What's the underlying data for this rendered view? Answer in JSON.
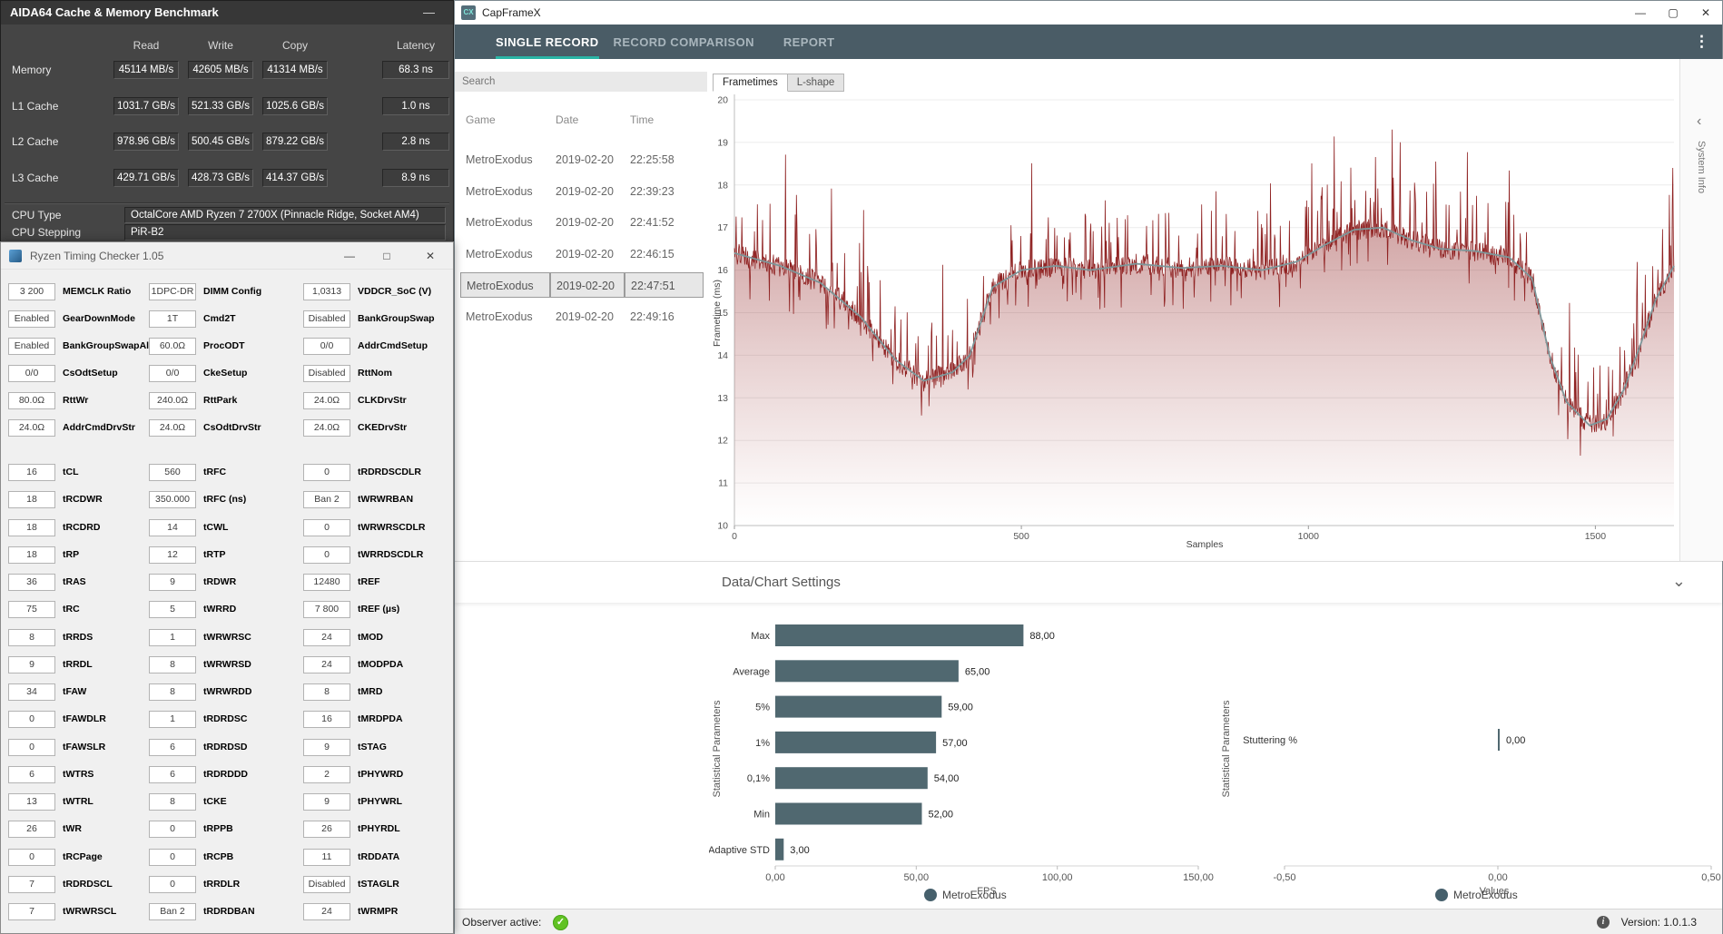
{
  "icons": {
    "minimize": "—",
    "maximize": "▢",
    "maximize_square": "□",
    "close": "✕",
    "kebab": "⋮",
    "chevron_down": "⌄",
    "chevron_left": "‹",
    "check": "✓",
    "info": "i"
  },
  "colors": {
    "navbar": "#4a5c66",
    "accent_teal": "#2ab5a5",
    "bar": "#506870",
    "legend_dot": "#46606c",
    "line_red": "#8f2222",
    "ma_line": "#7d9699",
    "check_green": "#61c224"
  },
  "aida64": {
    "title": "AIDA64 Cache & Memory Benchmark",
    "columns": [
      "Read",
      "Write",
      "Copy",
      "Latency"
    ],
    "rows": [
      {
        "label": "Memory",
        "values": [
          "45114 MB/s",
          "42605 MB/s",
          "41314 MB/s",
          "68.3 ns"
        ]
      },
      {
        "label": "L1 Cache",
        "values": [
          "1031.7 GB/s",
          "521.33 GB/s",
          "1025.6 GB/s",
          "1.0 ns"
        ]
      },
      {
        "label": "L2 Cache",
        "values": [
          "978.96 GB/s",
          "500.45 GB/s",
          "879.22 GB/s",
          "2.8 ns"
        ]
      },
      {
        "label": "L3 Cache",
        "values": [
          "429.71 GB/s",
          "428.73 GB/s",
          "414.37 GB/s",
          "8.9 ns"
        ]
      }
    ],
    "info_rows": [
      {
        "label": "CPU Type",
        "value": "OctalCore AMD Ryzen 7 2700X  (Pinnacle Ridge, Socket AM4)"
      },
      {
        "label": "CPU Stepping",
        "value": "PiR-B2"
      }
    ]
  },
  "rtc": {
    "title": "Ryzen Timing Checker 1.05",
    "columns": [
      {
        "top": [
          [
            "3 200",
            "MEMCLK Ratio"
          ],
          [
            "Enabled",
            "GearDownMode"
          ],
          [
            "Enabled",
            "BankGroupSwapAlt"
          ],
          [
            "0/0",
            "CsOdtSetup"
          ],
          [
            "80.0Ω",
            "RttWr"
          ],
          [
            "24.0Ω",
            "AddrCmdDrvStr"
          ]
        ],
        "bottom": [
          [
            "16",
            "tCL"
          ],
          [
            "18",
            "tRCDWR"
          ],
          [
            "18",
            "tRCDRD"
          ],
          [
            "18",
            "tRP"
          ],
          [
            "36",
            "tRAS"
          ],
          [
            "75",
            "tRC"
          ],
          [
            "8",
            "tRRDS"
          ],
          [
            "9",
            "tRRDL"
          ],
          [
            "34",
            "tFAW"
          ],
          [
            "0",
            "tFAWDLR"
          ],
          [
            "0",
            "tFAWSLR"
          ],
          [
            "6",
            "tWTRS"
          ],
          [
            "13",
            "tWTRL"
          ],
          [
            "26",
            "tWR"
          ],
          [
            "0",
            "tRCPage"
          ],
          [
            "7",
            "tRDRDSCL"
          ],
          [
            "7",
            "tWRWRSCL"
          ]
        ]
      },
      {
        "top": [
          [
            "1DPC-DR",
            "DIMM Config"
          ],
          [
            "1T",
            "Cmd2T"
          ],
          [
            "60.0Ω",
            "ProcODT"
          ],
          [
            "0/0",
            "CkeSetup"
          ],
          [
            "240.0Ω",
            "RttPark"
          ],
          [
            "24.0Ω",
            "CsOdtDrvStr"
          ]
        ],
        "bottom": [
          [
            "560",
            "tRFC"
          ],
          [
            "350.000",
            "tRFC (ns)"
          ],
          [
            "14",
            "tCWL"
          ],
          [
            "12",
            "tRTP"
          ],
          [
            "9",
            "tRDWR"
          ],
          [
            "5",
            "tWRRD"
          ],
          [
            "1",
            "tWRWRSC"
          ],
          [
            "8",
            "tWRWRSD"
          ],
          [
            "8",
            "tWRWRDD"
          ],
          [
            "1",
            "tRDRDSC"
          ],
          [
            "6",
            "tRDRDSD"
          ],
          [
            "6",
            "tRDRDDD"
          ],
          [
            "8",
            "tCKE"
          ],
          [
            "0",
            "tRPPB"
          ],
          [
            "0",
            "tRCPB"
          ],
          [
            "0",
            "tRRDLR"
          ],
          [
            "Ban 2",
            "tRDRDBAN"
          ]
        ]
      },
      {
        "top": [
          [
            "1,0313",
            "VDDCR_SoC (V)"
          ],
          [
            "Disabled",
            "BankGroupSwap"
          ],
          [
            "0/0",
            "AddrCmdSetup"
          ],
          [
            "Disabled",
            "RttNom"
          ],
          [
            "24.0Ω",
            "CLKDrvStr"
          ],
          [
            "24.0Ω",
            "CKEDrvStr"
          ]
        ],
        "bottom": [
          [
            "0",
            "tRDRDSCDLR"
          ],
          [
            "Ban 2",
            "tWRWRBAN"
          ],
          [
            "0",
            "tWRWRSCDLR"
          ],
          [
            "0",
            "tWRRDSCDLR"
          ],
          [
            "12480",
            "tREF"
          ],
          [
            "7 800",
            "tREF (µs)"
          ],
          [
            "24",
            "tMOD"
          ],
          [
            "24",
            "tMODPDA"
          ],
          [
            "8",
            "tMRD"
          ],
          [
            "16",
            "tMRDPDA"
          ],
          [
            "9",
            "tSTAG"
          ],
          [
            "2",
            "tPHYWRD"
          ],
          [
            "9",
            "tPHYWRL"
          ],
          [
            "26",
            "tPHYRDL"
          ],
          [
            "11",
            "tRDDATA"
          ],
          [
            "Disabled",
            "tSTAGLR"
          ],
          [
            "24",
            "tWRMPR"
          ]
        ]
      }
    ]
  },
  "capframex": {
    "title": "CapFrameX",
    "logo": "CX",
    "nav_tabs": [
      "SINGLE RECORD",
      "RECORD COMPARISON",
      "REPORT"
    ],
    "active_tab": 0,
    "search_placeholder": "Search",
    "record_table": {
      "columns": [
        "Game",
        "Date",
        "Time"
      ],
      "rows": [
        [
          "MetroExodus",
          "2019-02-20",
          "22:25:58"
        ],
        [
          "MetroExodus",
          "2019-02-20",
          "22:39:23"
        ],
        [
          "MetroExodus",
          "2019-02-20",
          "22:41:52"
        ],
        [
          "MetroExodus",
          "2019-02-20",
          "22:46:15"
        ],
        [
          "MetroExodus",
          "2019-02-20",
          "22:47:51"
        ],
        [
          "MetroExodus",
          "2019-02-20",
          "22:49:16"
        ]
      ],
      "selected_index": 4
    },
    "chart_tabs": [
      "Frametimes",
      "L-shape"
    ],
    "system_info_label": "System Info",
    "settings_header": "Data/Chart Settings",
    "status": {
      "observer_label": "Observer active:",
      "version_label": "Version: 1.0.1.3"
    }
  },
  "chart_data": [
    {
      "type": "line",
      "title": "Frametimes",
      "xlabel": "Samples",
      "ylabel": "Frametime (ms)",
      "xlim": [
        0,
        1637
      ],
      "ylim": [
        10,
        20
      ],
      "xticks": [
        0,
        500,
        1000,
        1500
      ],
      "yticks": [
        10,
        11,
        12,
        13,
        14,
        15,
        16,
        17,
        18,
        19,
        20
      ],
      "series_name": "MetroExodus frametimes",
      "moving_average": [
        [
          0,
          16.4
        ],
        [
          80,
          16.1
        ],
        [
          150,
          15.7
        ],
        [
          220,
          14.9
        ],
        [
          280,
          13.9
        ],
        [
          330,
          13.4
        ],
        [
          380,
          13.6
        ],
        [
          410,
          14.0
        ],
        [
          450,
          15.6
        ],
        [
          500,
          16.0
        ],
        [
          560,
          16.1
        ],
        [
          620,
          16.0
        ],
        [
          700,
          16.15
        ],
        [
          780,
          16.05
        ],
        [
          850,
          16.1
        ],
        [
          920,
          16.0
        ],
        [
          980,
          16.2
        ],
        [
          1030,
          16.6
        ],
        [
          1080,
          16.95
        ],
        [
          1130,
          17.0
        ],
        [
          1180,
          16.7
        ],
        [
          1230,
          16.5
        ],
        [
          1290,
          16.45
        ],
        [
          1350,
          16.3
        ],
        [
          1390,
          15.8
        ],
        [
          1420,
          14.0
        ],
        [
          1450,
          12.9
        ],
        [
          1490,
          12.35
        ],
        [
          1520,
          12.5
        ],
        [
          1550,
          13.2
        ],
        [
          1580,
          14.3
        ],
        [
          1605,
          15.3
        ],
        [
          1637,
          16.1
        ]
      ]
    },
    {
      "type": "bar",
      "categories": [
        "Max",
        "Average",
        "5%",
        "1%",
        "0,1%",
        "Min",
        "Adaptive STD"
      ],
      "values": [
        88,
        65,
        59,
        57,
        54,
        52,
        3
      ],
      "value_labels": [
        "88,00",
        "65,00",
        "59,00",
        "57,00",
        "54,00",
        "52,00",
        "3,00"
      ],
      "xlabel": "FPS",
      "ylabel": "Statistical Parameters",
      "xticks": [
        "0,00",
        "50,00",
        "100,00",
        "150,00"
      ],
      "xtick_values": [
        0,
        50,
        100,
        150
      ],
      "xlim": [
        0,
        150
      ],
      "legend": "MetroExodus"
    },
    {
      "type": "bar",
      "categories": [
        "Stuttering %"
      ],
      "values": [
        0
      ],
      "value_labels": [
        "0,00"
      ],
      "xlabel": "Values",
      "ylabel": "Statistical Parameters",
      "xticks": [
        "-0,50",
        "0,00",
        "0,50"
      ],
      "xtick_values": [
        -0.5,
        0,
        0.5
      ],
      "xlim": [
        -0.5,
        0.5
      ],
      "legend": "MetroExodus"
    }
  ]
}
